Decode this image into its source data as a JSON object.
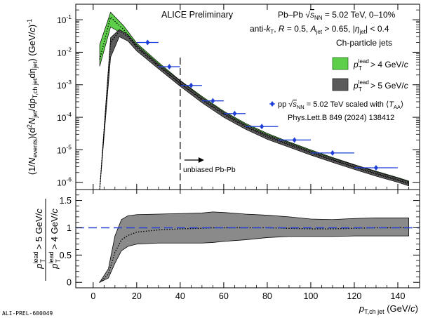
{
  "chart_data": [
    {
      "type": "area",
      "ylabel": "(1/N_events)(d²N_jet/dp_T,ch jet dη_jet) (GeV/c)⁻¹",
      "ylabel_parts": {
        "p1": "(1/",
        "n": "N",
        "sub_events": "events",
        "p2": ")(d",
        "sup2": "2",
        "n2": "N",
        "sub_jet": "jet",
        "p3": "/d",
        "p": "p",
        "sub_tch": "T,ch jet",
        "p4": "dη",
        "sub_jet2": "jet",
        "p5": ") (GeV/",
        "c": "c",
        "p6": ")",
        "sup_m1": "-1"
      },
      "yscale": "log",
      "ylim": [
        6e-07,
        0.3
      ],
      "xlim": [
        -8,
        150
      ],
      "yticks": [
        {
          "v": 1e-06,
          "m": "10",
          "e": "-6"
        },
        {
          "v": 1e-05,
          "m": "10",
          "e": "-5"
        },
        {
          "v": 0.0001,
          "m": "10",
          "e": "-4"
        },
        {
          "v": 0.001,
          "m": "10",
          "e": "-3"
        },
        {
          "v": 0.01,
          "m": "10",
          "e": "-2"
        },
        {
          "v": 0.1,
          "m": "10",
          "e": "-1"
        }
      ],
      "annotations": {
        "preliminary": "ALICE Preliminary",
        "system_parts": {
          "a": "Pb–Pb ",
          "s": "s",
          "nn": "NN",
          "b": " = 5.02 TeV, 0–10%"
        },
        "jets_parts": {
          "a": "anti-",
          "k": "k",
          "t": "T",
          "b": ", ",
          "r": "R",
          "c": " = 0.5, ",
          "aj": "A",
          "jet": "jet",
          "d": " > 0.65, |",
          "eta": "η",
          "jet2": "jet",
          "e": "| < 0.4"
        },
        "chparticle": "Ch-particle jets",
        "unbiased": "unbiased Pb-Pb",
        "pp_parts": {
          "a": "pp ",
          "s": "s",
          "nn": "NN",
          "b": " = 5.02 TeV scaled with ⟨",
          "t": "T",
          "aa": "AA",
          "c": "⟩"
        },
        "reference": "Phys.Lett.B 849 (2024) 138412"
      },
      "unbiased_line_x": 40,
      "series": [
        {
          "name": "p_T^lead > 4 GeV/c",
          "legend_parts": {
            "p": "p",
            "sup": "lead",
            "sub": "T",
            "rest": " > 4 GeV/",
            "c": "c"
          },
          "color": "#5ecf4a",
          "x": [
            3,
            8,
            14,
            20,
            30,
            40,
            50,
            60,
            70,
            80,
            90,
            100,
            110,
            120,
            130,
            140,
            145
          ],
          "y": [
            0.006,
            0.12,
            0.05,
            0.015,
            0.004,
            0.0011,
            0.00036,
            0.00013,
            5.5e-05,
            2.7e-05,
            1.5e-05,
            8.5e-06,
            5e-06,
            3e-06,
            1.9e-06,
            1.2e-06,
            9.5e-07
          ],
          "y_low": [
            0.0037,
            0.06,
            0.035,
            0.012,
            0.0033,
            0.0009,
            0.0003,
            0.000108,
            4.6e-05,
            2.3e-05,
            1.28e-05,
            7.3e-06,
            4.3e-06,
            2.6e-06,
            1.65e-06,
            1.05e-06,
            8.2e-07
          ],
          "y_high": [
            0.017,
            0.17,
            0.065,
            0.019,
            0.0049,
            0.00135,
            0.00044,
            0.000155,
            6.5e-05,
            3.2e-05,
            1.75e-05,
            1e-05,
            5.8e-06,
            3.5e-06,
            2.2e-06,
            1.4e-06,
            1.1e-06
          ]
        },
        {
          "name": "p_T^lead > 5 GeV/c",
          "legend_parts": {
            "p": "p",
            "sup": "lead",
            "sub": "T",
            "rest": " > 5 GeV/",
            "c": "c"
          },
          "color": "#5a5a5a",
          "x": [
            3,
            8,
            12,
            16,
            20,
            30,
            40,
            50,
            60,
            70,
            80,
            90,
            100,
            110,
            120,
            130,
            140,
            145
          ],
          "y": [
            6e-07,
            0.02,
            0.045,
            0.03,
            0.014,
            0.0037,
            0.0011,
            0.00034,
            0.000122,
            5.1e-05,
            2.5e-05,
            1.4e-05,
            8e-06,
            4.8e-06,
            2.9e-06,
            1.8e-06,
            1.15e-06,
            9e-07
          ],
          "y_low": [
            6e-07,
            0.007,
            0.03,
            0.022,
            0.011,
            0.0031,
            0.0009,
            0.00028,
            0.0001,
            4.3e-05,
            2.1e-05,
            1.2e-05,
            6.9e-06,
            4.1e-06,
            2.5e-06,
            1.55e-06,
            1e-06,
            7.8e-07
          ],
          "y_high": [
            6e-07,
            0.028,
            0.05,
            0.035,
            0.017,
            0.0044,
            0.0013,
            0.00041,
            0.000145,
            6e-05,
            2.95e-05,
            1.65e-05,
            9.3e-06,
            5.5e-06,
            3.4e-06,
            2.1e-06,
            1.35e-06,
            1.05e-06
          ]
        }
      ],
      "pp_points": {
        "name": "pp √s_NN = 5.02 TeV scaled with ⟨T_AA⟩",
        "color": "#1f3fd6",
        "x": [
          25,
          35,
          45,
          55,
          65,
          77.5,
          92.5,
          110,
          130
        ],
        "xerr": [
          5,
          5,
          5,
          5,
          5,
          7.5,
          7.5,
          10,
          10
        ],
        "y": [
          0.02,
          0.0036,
          0.00095,
          0.00032,
          0.00013,
          5.2e-05,
          2e-05,
          8e-06,
          2.8e-06
        ]
      }
    },
    {
      "type": "area",
      "xlabel": "p_T,ch jet (GeV/c)",
      "xlabel_parts": {
        "p": "p",
        "sub": "T,ch jet",
        "rest": " (GeV/",
        "c": "c",
        "close": ")"
      },
      "ylabel_num": {
        "p": "p",
        "sup": "lead",
        "sub": "T",
        "rest": " > 5 GeV/",
        "c": "c"
      },
      "ylabel_den": {
        "p": "p",
        "sup": "lead",
        "sub": "T",
        "rest": " > 4 GeV/",
        "c": "c"
      },
      "ylim": [
        -0.1,
        1.7
      ],
      "xlim": [
        -8,
        150
      ],
      "yticks": [
        "0",
        "0.5",
        "1",
        "1.5"
      ],
      "ytick_values": [
        0,
        0.5,
        1,
        1.5
      ],
      "xticks": [
        "0",
        "20",
        "40",
        "60",
        "80",
        "100",
        "120",
        "140"
      ],
      "xtick_values": [
        0,
        20,
        40,
        60,
        80,
        100,
        120,
        140
      ],
      "reference_line": {
        "y": 1,
        "color": "#2a3fd6"
      },
      "ratio": {
        "color": "#8a8a8a",
        "x": [
          3,
          7,
          10,
          13,
          16,
          20,
          30,
          40,
          50,
          55,
          60,
          70,
          80,
          90,
          100,
          110,
          120,
          130,
          140,
          145
        ],
        "y": [
          0.0,
          0.15,
          0.55,
          0.78,
          0.86,
          0.92,
          0.96,
          0.98,
          0.99,
          1.0,
          1.0,
          1.0,
          1.0,
          0.99,
          0.98,
          0.98,
          0.99,
          1.0,
          1.0,
          1.0
        ],
        "y_low": [
          0.0,
          0.08,
          0.35,
          0.58,
          0.66,
          0.7,
          0.72,
          0.72,
          0.72,
          0.73,
          0.75,
          0.78,
          0.82,
          0.84,
          0.84,
          0.84,
          0.85,
          0.85,
          0.85,
          0.85
        ],
        "y_high": [
          0.0,
          0.25,
          0.85,
          1.15,
          1.22,
          1.24,
          1.25,
          1.26,
          1.27,
          1.29,
          1.28,
          1.25,
          1.23,
          1.2,
          1.16,
          1.15,
          1.17,
          1.18,
          1.18,
          1.18
        ]
      }
    }
  ],
  "footer": {
    "label": "ALI-PREL-600049"
  }
}
